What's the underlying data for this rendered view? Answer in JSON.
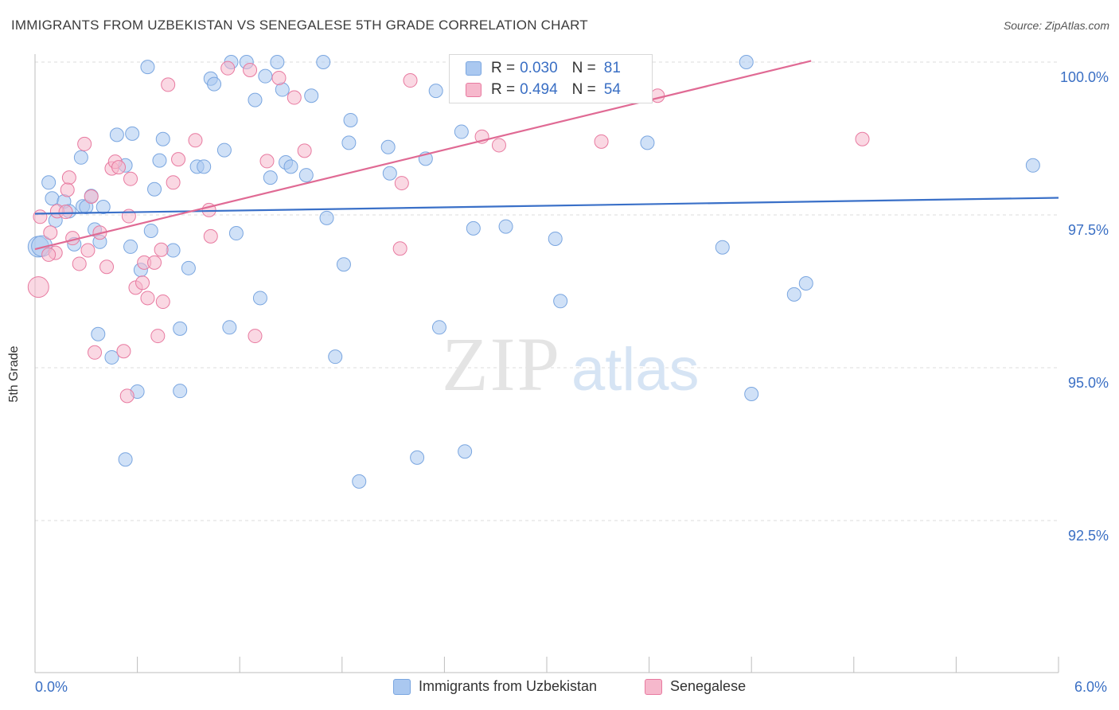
{
  "title": "IMMIGRANTS FROM UZBEKISTAN VS SENEGALESE 5TH GRADE CORRELATION CHART",
  "source": "Source: ZipAtlas.com",
  "watermark": {
    "zip": "ZIP",
    "atlas": "atlas"
  },
  "legend_top": [
    {
      "r_label": "R =",
      "r_value": "0.030",
      "n_label": "N =",
      "n_value": "81",
      "color": "#aac8f0"
    },
    {
      "r_label": "R =",
      "r_value": "0.494",
      "n_label": "N =",
      "n_value": "54",
      "color": "#f6b8cc"
    }
  ],
  "legend_bottom": [
    {
      "label": "Immigrants from Uzbekistan",
      "color": "#aac8f0"
    },
    {
      "label": "Senegalese",
      "color": "#f6b8cc"
    }
  ],
  "chart_data": {
    "type": "scatter",
    "title": "IMMIGRANTS FROM UZBEKISTAN VS SENEGALESE 5TH GRADE CORRELATION CHART",
    "xlabel": "",
    "ylabel": "5th Grade",
    "xlim": [
      0.0,
      6.0
    ],
    "ylim": [
      90.0,
      100.2
    ],
    "x_tick_labels": [
      "0.0%",
      "6.0%"
    ],
    "y_ticks": [
      92.5,
      95.0,
      97.5,
      100.0
    ],
    "y_tick_labels": [
      "92.5%",
      "95.0%",
      "97.5%",
      "100.0%"
    ],
    "grid": true,
    "series": [
      {
        "name": "Immigrants from Uzbekistan",
        "color": "#7aa6e0",
        "fill": "#aac8f0",
        "trend": {
          "x": [
            0.0,
            6.0
          ],
          "y": [
            97.52,
            97.78
          ]
        },
        "points": [
          [
            0.02,
            96.98
          ],
          [
            0.04,
            96.99
          ],
          [
            0.08,
            98.03
          ],
          [
            0.1,
            97.77
          ],
          [
            0.12,
            97.41
          ],
          [
            0.17,
            97.72
          ],
          [
            0.2,
            97.56
          ],
          [
            0.23,
            97.02
          ],
          [
            0.27,
            98.44
          ],
          [
            0.28,
            97.64
          ],
          [
            0.3,
            97.63
          ],
          [
            0.33,
            97.81
          ],
          [
            0.35,
            97.26
          ],
          [
            0.38,
            97.06
          ],
          [
            0.4,
            97.63
          ],
          [
            0.48,
            98.81
          ],
          [
            0.53,
            98.31
          ],
          [
            0.56,
            96.98
          ],
          [
            0.62,
            96.6
          ],
          [
            0.68,
            97.24
          ],
          [
            0.7,
            97.92
          ],
          [
            0.73,
            98.39
          ],
          [
            0.75,
            98.74
          ],
          [
            0.81,
            96.92
          ],
          [
            0.85,
            95.64
          ],
          [
            0.9,
            96.63
          ],
          [
            0.95,
            98.29
          ],
          [
            0.99,
            98.29
          ],
          [
            1.03,
            99.73
          ],
          [
            1.05,
            99.64
          ],
          [
            1.11,
            98.56
          ],
          [
            1.14,
            95.66
          ],
          [
            1.15,
            100.0
          ],
          [
            1.18,
            97.2
          ],
          [
            1.24,
            100.0
          ],
          [
            1.29,
            99.38
          ],
          [
            1.32,
            96.14
          ],
          [
            1.35,
            99.77
          ],
          [
            1.38,
            98.11
          ],
          [
            1.42,
            100.0
          ],
          [
            1.45,
            99.55
          ],
          [
            1.47,
            98.36
          ],
          [
            1.5,
            98.29
          ],
          [
            1.59,
            98.15
          ],
          [
            1.62,
            99.45
          ],
          [
            1.69,
            100.0
          ],
          [
            1.71,
            97.45
          ],
          [
            1.76,
            95.18
          ],
          [
            1.81,
            96.69
          ],
          [
            1.84,
            98.68
          ],
          [
            1.85,
            99.05
          ],
          [
            1.9,
            93.14
          ],
          [
            2.07,
            98.61
          ],
          [
            2.08,
            98.18
          ],
          [
            2.24,
            93.53
          ],
          [
            2.29,
            98.42
          ],
          [
            2.35,
            99.53
          ],
          [
            2.37,
            95.66
          ],
          [
            2.5,
            98.86
          ],
          [
            2.52,
            93.63
          ],
          [
            2.57,
            97.28
          ],
          [
            2.62,
            99.62
          ],
          [
            2.76,
            97.31
          ],
          [
            2.82,
            100.0
          ],
          [
            3.05,
            97.11
          ],
          [
            3.08,
            96.09
          ],
          [
            3.14,
            100.0
          ],
          [
            3.59,
            98.68
          ],
          [
            4.03,
            96.97
          ],
          [
            4.17,
            100.0
          ],
          [
            4.2,
            94.57
          ],
          [
            4.45,
            96.2
          ],
          [
            4.52,
            96.38
          ],
          [
            5.85,
            98.31
          ],
          [
            0.53,
            93.5
          ],
          [
            0.6,
            94.61
          ],
          [
            0.85,
            94.62
          ],
          [
            0.45,
            95.17
          ],
          [
            0.37,
            95.55
          ],
          [
            0.57,
            98.83
          ],
          [
            0.66,
            99.92
          ]
        ]
      },
      {
        "name": "Senegalese",
        "color": "#e87aa0",
        "fill": "#f6b8cc",
        "trend": {
          "x": [
            0.0,
            4.55
          ],
          "y": [
            96.94,
            100.02
          ]
        },
        "points": [
          [
            0.02,
            96.32
          ],
          [
            0.03,
            97.47
          ],
          [
            0.09,
            97.21
          ],
          [
            0.12,
            96.88
          ],
          [
            0.13,
            97.56
          ],
          [
            0.18,
            97.55
          ],
          [
            0.2,
            98.11
          ],
          [
            0.22,
            97.12
          ],
          [
            0.26,
            96.7
          ],
          [
            0.29,
            98.66
          ],
          [
            0.31,
            96.92
          ],
          [
            0.33,
            97.8
          ],
          [
            0.35,
            95.25
          ],
          [
            0.38,
            97.21
          ],
          [
            0.42,
            96.65
          ],
          [
            0.45,
            98.26
          ],
          [
            0.47,
            98.37
          ],
          [
            0.49,
            98.28
          ],
          [
            0.52,
            95.27
          ],
          [
            0.54,
            94.54
          ],
          [
            0.56,
            98.09
          ],
          [
            0.59,
            96.31
          ],
          [
            0.63,
            96.39
          ],
          [
            0.64,
            96.72
          ],
          [
            0.66,
            96.14
          ],
          [
            0.7,
            96.72
          ],
          [
            0.72,
            95.52
          ],
          [
            0.74,
            96.93
          ],
          [
            0.75,
            96.08
          ],
          [
            0.78,
            99.63
          ],
          [
            0.81,
            98.03
          ],
          [
            0.84,
            98.41
          ],
          [
            0.94,
            98.72
          ],
          [
            1.02,
            97.58
          ],
          [
            1.03,
            97.15
          ],
          [
            1.13,
            99.9
          ],
          [
            1.26,
            99.87
          ],
          [
            1.29,
            95.52
          ],
          [
            1.36,
            98.38
          ],
          [
            1.43,
            99.74
          ],
          [
            1.52,
            99.42
          ],
          [
            1.58,
            98.55
          ],
          [
            2.14,
            96.95
          ],
          [
            2.15,
            98.02
          ],
          [
            2.2,
            99.7
          ],
          [
            2.62,
            98.78
          ],
          [
            2.72,
            98.64
          ],
          [
            2.81,
            100.0
          ],
          [
            3.32,
            98.7
          ],
          [
            3.65,
            99.45
          ],
          [
            4.85,
            98.74
          ],
          [
            0.55,
            97.48
          ],
          [
            0.19,
            97.91
          ],
          [
            0.08,
            96.85
          ]
        ]
      }
    ]
  }
}
